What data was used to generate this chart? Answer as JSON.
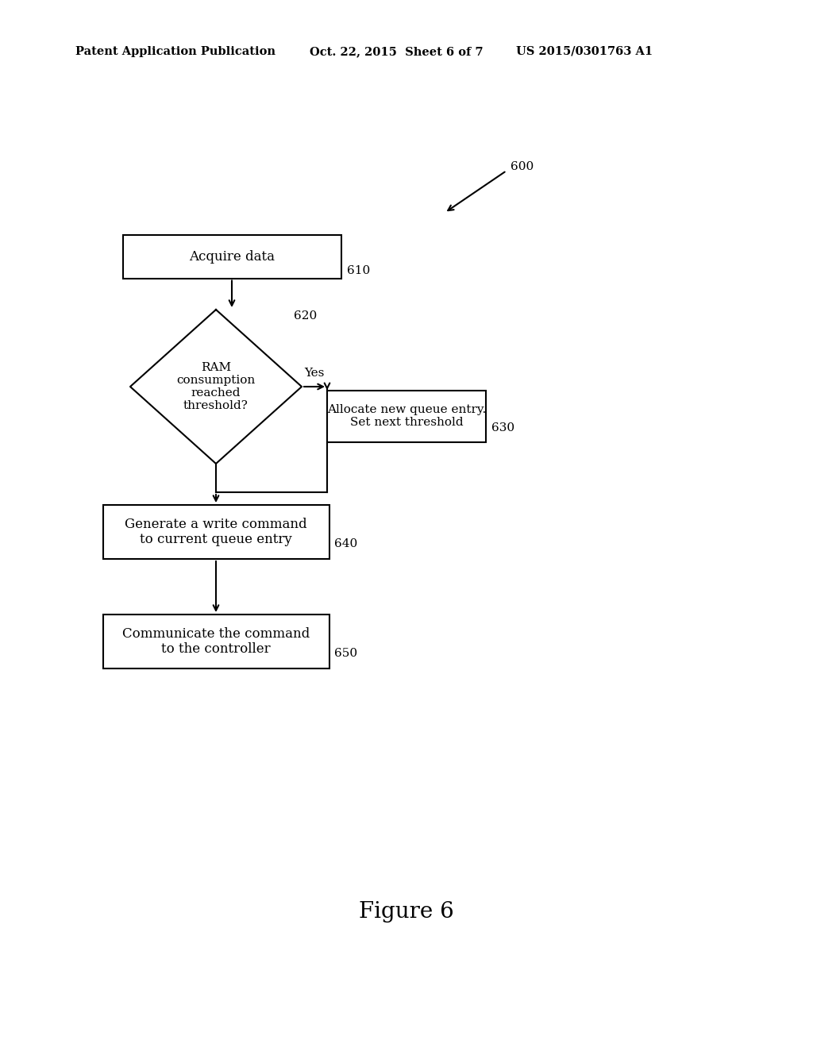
{
  "bg_color": "#ffffff",
  "header_left": "Patent Application Publication",
  "header_mid": "Oct. 22, 2015  Sheet 6 of 7",
  "header_right": "US 2015/0301763 A1",
  "figure_label": "Figure 6",
  "ref_600": "600",
  "ref_610": "610",
  "ref_620": "620",
  "ref_630": "630",
  "ref_640": "640",
  "ref_650": "650",
  "box_610_text": "Acquire data",
  "diamond_620_text": "RAM\nconsumption\nreached\nthreshold?",
  "box_630_text": "Allocate new queue entry.\nSet next threshold",
  "box_640_text": "Generate a write command\nto current queue entry",
  "box_650_text": "Communicate the command\nto the controller",
  "yes_label": "Yes",
  "text_color": "#000000",
  "box_edge_color": "#000000",
  "line_color": "#000000"
}
